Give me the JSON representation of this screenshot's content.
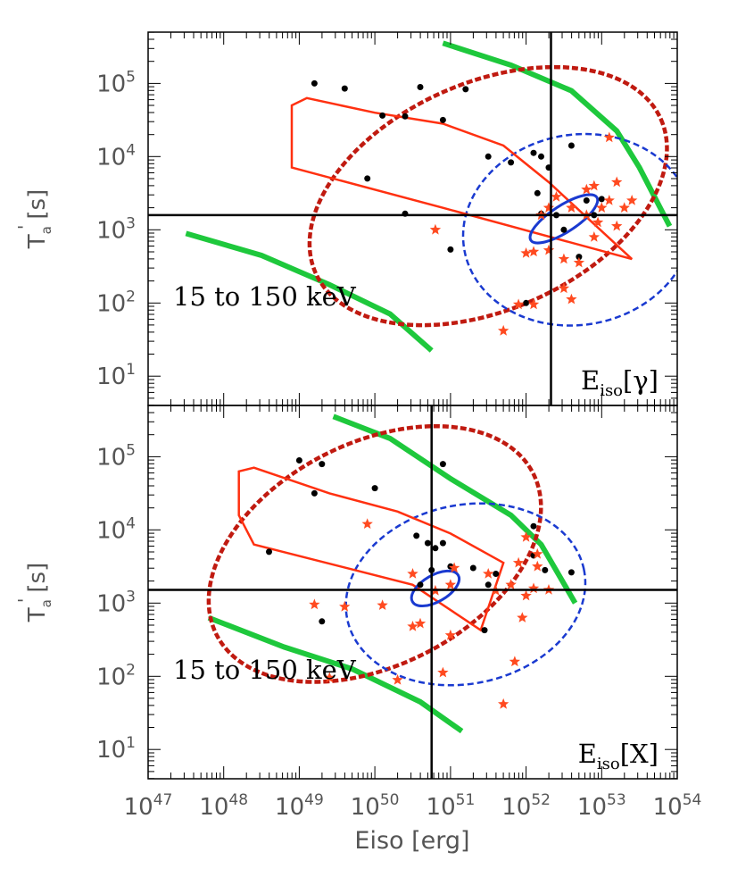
{
  "chart_data": {
    "type": "scatter",
    "xlabel": "Eiso [erg]",
    "x_scale": "log",
    "xlim_exp": [
      47,
      54
    ],
    "x_ticks": [
      {
        "base": "10",
        "exp": "47",
        "value_exp": 47
      },
      {
        "base": "10",
        "exp": "48",
        "value_exp": 48
      },
      {
        "base": "10",
        "exp": "49",
        "value_exp": 49
      },
      {
        "base": "10",
        "exp": "50",
        "value_exp": 50
      },
      {
        "base": "10",
        "exp": "51",
        "value_exp": 51
      },
      {
        "base": "10",
        "exp": "52",
        "value_exp": 52
      },
      {
        "base": "10",
        "exp": "53",
        "value_exp": 53
      },
      {
        "base": "10",
        "exp": "54",
        "value_exp": 54
      }
    ],
    "panels": [
      {
        "id": "top",
        "ylabel": "T'a [s]",
        "ylabel_main": "T",
        "ylabel_sub": "a",
        "ylabel_prime": "'",
        "ylabel_unit": "[s]",
        "y_scale": "log",
        "ylim_exp": [
          0.6,
          5.7
        ],
        "y_ticks": [
          {
            "base": "10",
            "exp": "5",
            "value_exp": 5
          },
          {
            "base": "10",
            "exp": "4",
            "value_exp": 4
          },
          {
            "base": "10",
            "exp": "3",
            "value_exp": 3
          },
          {
            "base": "10",
            "exp": "2",
            "value_exp": 2
          },
          {
            "base": "10",
            "exp": "1",
            "value_exp": 1
          }
        ],
        "energy_band": "15 to 150 keV",
        "energy_label": "Eiso[γ]",
        "energy_label_main": "E",
        "energy_label_sub": "iso",
        "energy_label_bracket": "[γ]",
        "hline_log_t": 3.2,
        "vline_log_e": 52.33,
        "black_points": [
          [
            49.2,
            5.0
          ],
          [
            49.6,
            4.93
          ],
          [
            50.1,
            4.56
          ],
          [
            50.4,
            4.55
          ],
          [
            50.6,
            4.95
          ],
          [
            50.9,
            4.5
          ],
          [
            51.2,
            4.92
          ],
          [
            51.5,
            4.0
          ],
          [
            51.8,
            3.92
          ],
          [
            52.1,
            4.05
          ],
          [
            52.15,
            3.5
          ],
          [
            52.2,
            4.0
          ],
          [
            52.3,
            3.85
          ],
          [
            52.2,
            3.22
          ],
          [
            52.4,
            3.2
          ],
          [
            52.6,
            4.15
          ],
          [
            52.8,
            3.4
          ],
          [
            52.9,
            3.2
          ],
          [
            53.0,
            3.42
          ],
          [
            52.5,
            3.0
          ],
          [
            52.7,
            2.63
          ],
          [
            51.0,
            2.73
          ],
          [
            49.9,
            3.7
          ],
          [
            50.4,
            3.22
          ],
          [
            52.0,
            2.0
          ]
        ],
        "red_stars": [
          [
            53.1,
            4.26
          ],
          [
            52.9,
            3.6
          ],
          [
            52.8,
            3.55
          ],
          [
            53.2,
            3.65
          ],
          [
            53.4,
            3.4
          ],
          [
            53.3,
            3.3
          ],
          [
            53.1,
            3.4
          ],
          [
            53.0,
            3.3
          ],
          [
            52.8,
            3.2
          ],
          [
            52.4,
            3.45
          ],
          [
            52.3,
            3.3
          ],
          [
            52.2,
            3.2
          ],
          [
            52.6,
            3.3
          ],
          [
            52.9,
            2.9
          ],
          [
            52.7,
            2.55
          ],
          [
            52.5,
            2.6
          ],
          [
            52.3,
            2.72
          ],
          [
            52.1,
            2.7
          ],
          [
            52.0,
            2.68
          ],
          [
            52.6,
            2.05
          ],
          [
            52.1,
            1.98
          ],
          [
            51.9,
            1.98
          ],
          [
            51.7,
            1.62
          ],
          [
            52.5,
            2.2
          ],
          [
            50.8,
            3.0
          ],
          [
            52.95,
            3.1
          ],
          [
            53.2,
            3.05
          ]
        ],
        "red_solid": [
          [
            48.9,
            4.7
          ],
          [
            49.1,
            4.8
          ],
          [
            50.0,
            4.6
          ],
          [
            50.9,
            4.45
          ],
          [
            51.7,
            4.15
          ],
          [
            52.3,
            3.65
          ],
          [
            53.4,
            2.6
          ],
          [
            50.9,
            3.3
          ],
          [
            48.9,
            3.85
          ]
        ],
        "red_dotted_ellipse": {
          "cx": 51.5,
          "cy": 3.46,
          "rx": 2.5,
          "ry": 1.55,
          "angle": -24
        },
        "blue_dashed_ellipse": {
          "cx": 52.68,
          "cy": 3.0,
          "rx": 1.52,
          "ry": 1.3,
          "angle": -10
        },
        "blue_solid_ellipse": {
          "cx": 52.5,
          "cy": 3.15,
          "rx": 0.52,
          "ry": 0.18,
          "angle": -33
        },
        "green_upper": [
          [
            50.9,
            5.55
          ],
          [
            51.8,
            5.25
          ],
          [
            52.6,
            4.9
          ],
          [
            53.2,
            4.35
          ],
          [
            53.5,
            3.85
          ],
          [
            53.9,
            3.05
          ]
        ],
        "green_lower": [
          [
            47.5,
            2.95
          ],
          [
            48.5,
            2.65
          ],
          [
            49.4,
            2.25
          ],
          [
            50.2,
            1.85
          ],
          [
            50.75,
            1.35
          ]
        ]
      },
      {
        "id": "bottom",
        "ylabel": "T'a [s]",
        "ylabel_main": "T",
        "ylabel_sub": "a",
        "ylabel_prime": "'",
        "ylabel_unit": "[s]",
        "y_scale": "log",
        "ylim_exp": [
          0.6,
          5.7
        ],
        "y_ticks": [
          {
            "base": "10",
            "exp": "5",
            "value_exp": 5
          },
          {
            "base": "10",
            "exp": "4",
            "value_exp": 4
          },
          {
            "base": "10",
            "exp": "3",
            "value_exp": 3
          },
          {
            "base": "10",
            "exp": "2",
            "value_exp": 2
          },
          {
            "base": "10",
            "exp": "1",
            "value_exp": 1
          }
        ],
        "energy_band": "15 to 150 keV",
        "energy_label": "Eiso[X]",
        "energy_label_main": "E",
        "energy_label_sub": "iso",
        "energy_label_bracket": "[X]",
        "hline_log_t": 3.18,
        "vline_log_e": 50.75,
        "black_points": [
          [
            49.0,
            4.95
          ],
          [
            49.3,
            4.9
          ],
          [
            49.2,
            4.5
          ],
          [
            50.0,
            4.57
          ],
          [
            50.55,
            3.92
          ],
          [
            50.7,
            3.82
          ],
          [
            50.8,
            3.75
          ],
          [
            50.9,
            4.9
          ],
          [
            50.9,
            3.82
          ],
          [
            50.75,
            3.45
          ],
          [
            50.6,
            3.25
          ],
          [
            51.0,
            3.5
          ],
          [
            51.3,
            3.48
          ],
          [
            51.6,
            3.4
          ],
          [
            51.5,
            3.25
          ],
          [
            51.45,
            2.63
          ],
          [
            52.1,
            3.65
          ],
          [
            52.25,
            3.45
          ],
          [
            52.6,
            3.42
          ],
          [
            49.3,
            2.75
          ],
          [
            48.6,
            3.7
          ],
          [
            52.1,
            4.05
          ]
        ],
        "red_stars": [
          [
            49.9,
            4.08
          ],
          [
            52.0,
            3.9
          ],
          [
            52.15,
            3.67
          ],
          [
            51.9,
            3.55
          ],
          [
            51.5,
            3.4
          ],
          [
            51.8,
            3.25
          ],
          [
            51.6,
            3.17
          ],
          [
            52.1,
            3.2
          ],
          [
            52.3,
            3.18
          ],
          [
            52.0,
            3.1
          ],
          [
            50.5,
            3.4
          ],
          [
            50.8,
            3.17
          ],
          [
            51.0,
            3.25
          ],
          [
            51.05,
            3.48
          ],
          [
            50.5,
            2.68
          ],
          [
            50.6,
            2.72
          ],
          [
            50.1,
            2.97
          ],
          [
            49.6,
            2.95
          ],
          [
            49.2,
            2.98
          ],
          [
            51.0,
            2.56
          ],
          [
            50.9,
            2.05
          ],
          [
            50.3,
            1.95
          ],
          [
            51.95,
            2.8
          ],
          [
            51.7,
            1.62
          ],
          [
            49.4,
            1.98
          ],
          [
            51.85,
            2.2
          ],
          [
            52.15,
            3.5
          ]
        ],
        "red_solid": [
          [
            48.2,
            4.8
          ],
          [
            48.4,
            4.85
          ],
          [
            49.4,
            4.5
          ],
          [
            50.3,
            4.25
          ],
          [
            51.0,
            3.95
          ],
          [
            51.7,
            3.55
          ],
          [
            51.4,
            2.63
          ],
          [
            50.5,
            3.25
          ],
          [
            48.4,
            3.8
          ],
          [
            48.2,
            4.2
          ]
        ],
        "red_dotted_ellipse": {
          "cx": 50.0,
          "cy": 3.67,
          "rx": 2.35,
          "ry": 1.52,
          "angle": -27
        },
        "blue_dashed_ellipse": {
          "cx": 51.2,
          "cy": 3.12,
          "rx": 1.6,
          "ry": 1.22,
          "angle": -12
        },
        "blue_solid_ellipse": {
          "cx": 50.8,
          "cy": 3.2,
          "rx": 0.35,
          "ry": 0.18,
          "angle": -30
        },
        "green_upper": [
          [
            49.45,
            5.55
          ],
          [
            50.2,
            5.25
          ],
          [
            51.0,
            4.7
          ],
          [
            51.8,
            4.2
          ],
          [
            52.2,
            3.8
          ],
          [
            52.65,
            3.0
          ]
        ],
        "green_lower": [
          [
            47.8,
            2.8
          ],
          [
            48.8,
            2.4
          ],
          [
            49.7,
            2.1
          ],
          [
            50.6,
            1.65
          ],
          [
            51.15,
            1.25
          ]
        ]
      }
    ]
  },
  "colors": {
    "black_points": "#000000",
    "red_markers": "#ff4a20",
    "red_solid": "#ff3010",
    "red_dotted": "#c01a10",
    "blue": "#1a3ad0",
    "green": "#1ec83c",
    "axes": "#000000",
    "tick_text": "#555555"
  }
}
